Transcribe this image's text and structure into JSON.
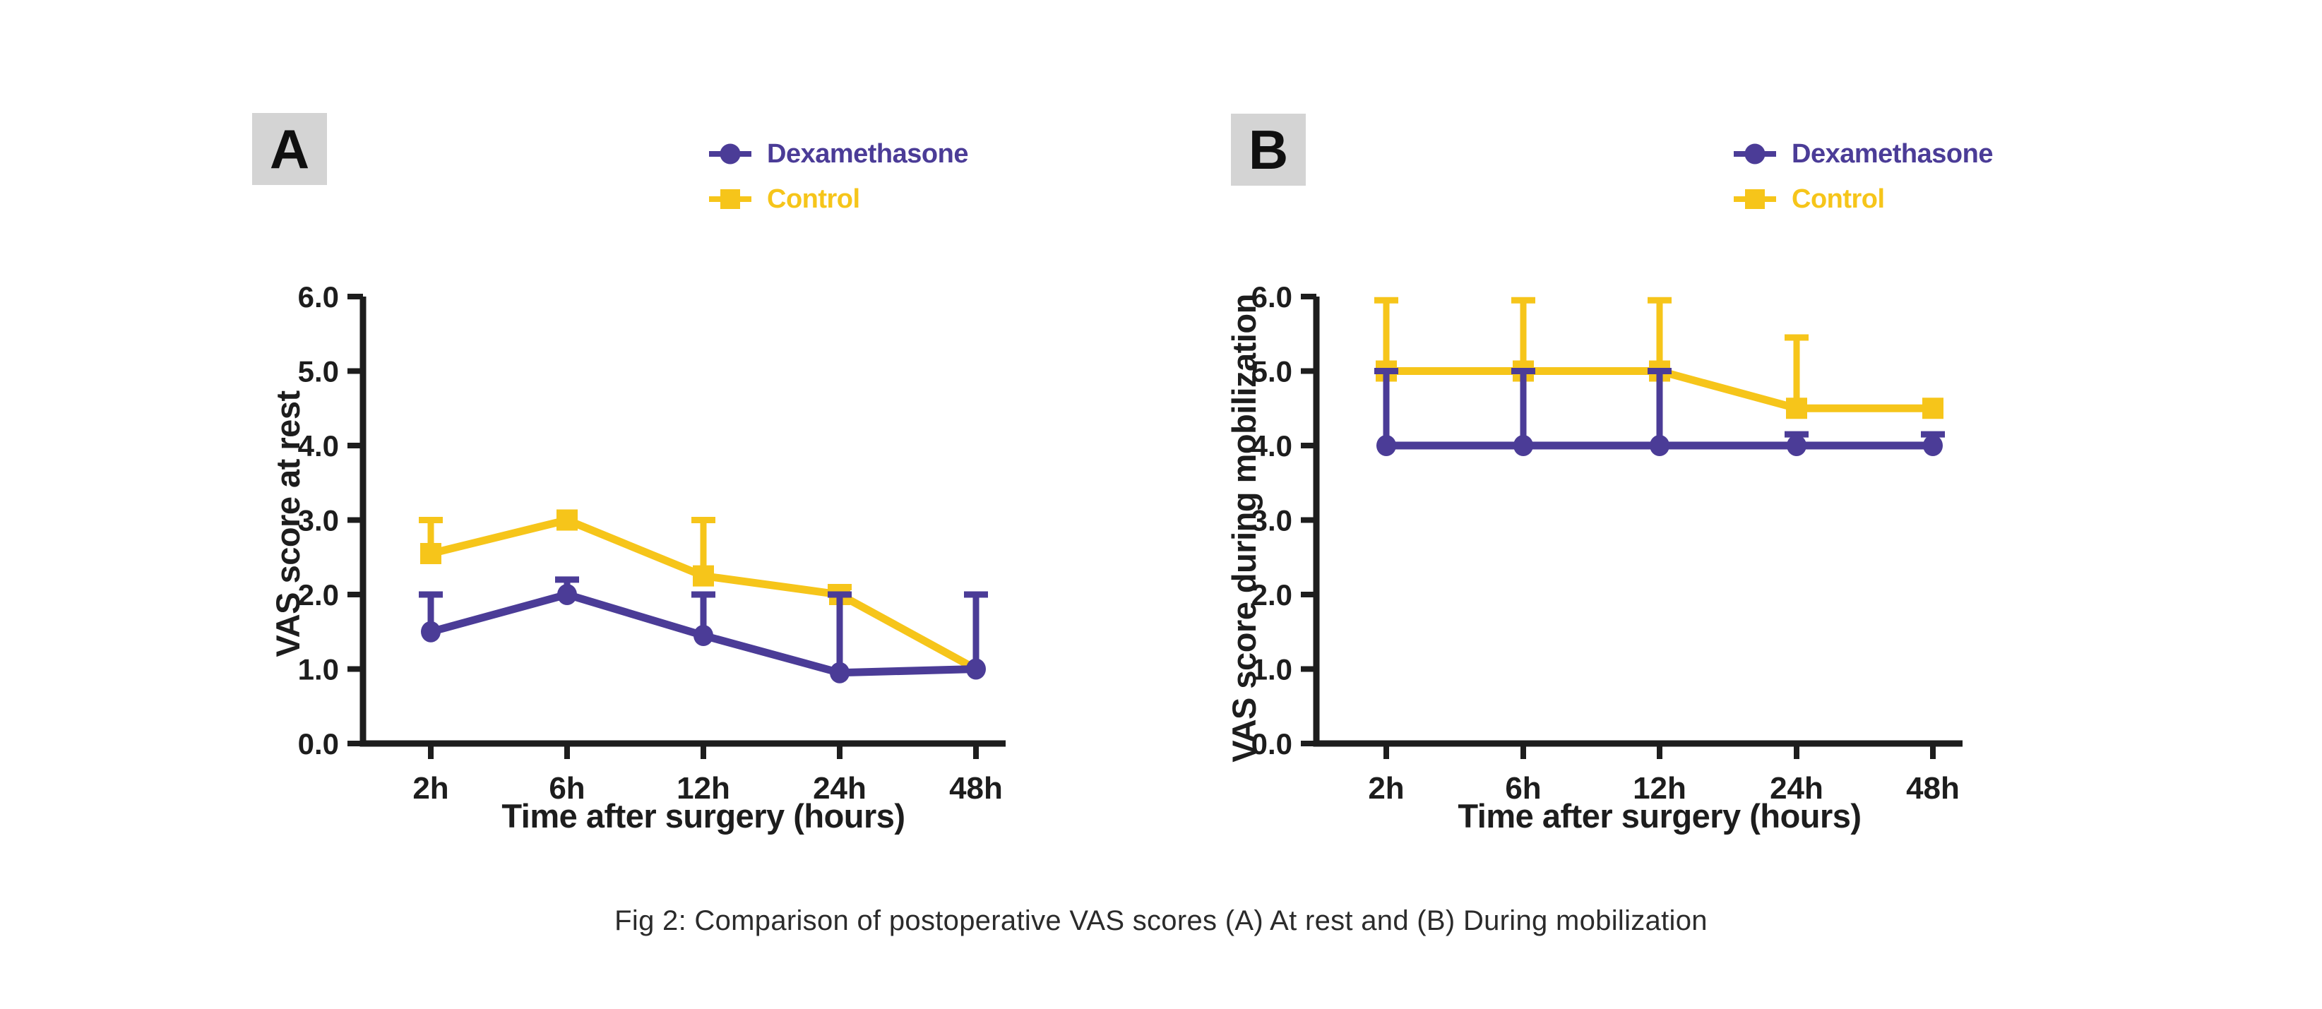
{
  "figure": {
    "caption": "Fig 2: Comparison of postoperative VAS scores (A) At rest and (B) During mobilization"
  },
  "colors": {
    "dexamethasone": "#4b3c97",
    "control": "#f6c51a",
    "axis": "#1d1d1d",
    "panel_label_bg": "#d4d4d4"
  },
  "panels": [
    {
      "label": "A"
    },
    {
      "label": "B"
    }
  ],
  "legend": {
    "items": [
      {
        "label": "Dexamethasone",
        "marker": "circle",
        "color": "#4b3c97"
      },
      {
        "label": "Control",
        "marker": "square",
        "color": "#f6c51a"
      }
    ]
  },
  "chart_data": [
    {
      "type": "line",
      "panel": "A",
      "title": "",
      "xlabel": "Time after surgery (hours)",
      "ylabel": "VAS score at rest",
      "categories": [
        "2h",
        "6h",
        "12h",
        "24h",
        "48h"
      ],
      "ylim": [
        0,
        6
      ],
      "yticks": [
        "0.0",
        "1.0",
        "2.0",
        "3.0",
        "4.0",
        "5.0",
        "6.0"
      ],
      "grid": false,
      "legend_position": "top-right",
      "series": [
        {
          "name": "Dexamethasone",
          "marker": "circle",
          "color": "#4b3c97",
          "values": [
            1.5,
            2.0,
            1.45,
            0.95,
            1.0
          ],
          "error_upper": [
            2.0,
            2.2,
            2.0,
            2.0,
            2.0
          ]
        },
        {
          "name": "Control",
          "marker": "square",
          "color": "#f6c51a",
          "values": [
            2.55,
            3.0,
            2.25,
            2.0,
            1.0
          ],
          "error_upper": [
            3.0,
            null,
            3.0,
            2.1,
            null
          ],
          "marker_skip": [
            4
          ]
        }
      ]
    },
    {
      "type": "line",
      "panel": "B",
      "title": "",
      "xlabel": "Time after surgery (hours)",
      "ylabel": "VAS score during mobilization",
      "categories": [
        "2h",
        "6h",
        "12h",
        "24h",
        "48h"
      ],
      "ylim": [
        0,
        6
      ],
      "yticks": [
        "0.0",
        "1.0",
        "2.0",
        "3.0",
        "4.0",
        "5.0",
        "6.0"
      ],
      "grid": false,
      "legend_position": "top-right",
      "series": [
        {
          "name": "Dexamethasone",
          "marker": "circle",
          "color": "#4b3c97",
          "values": [
            4.0,
            4.0,
            4.0,
            4.0,
            4.0
          ],
          "error_upper": [
            5.0,
            5.0,
            5.0,
            4.15,
            4.15
          ]
        },
        {
          "name": "Control",
          "marker": "square",
          "color": "#f6c51a",
          "values": [
            5.0,
            5.0,
            5.0,
            4.5,
            4.5
          ],
          "error_upper": [
            5.95,
            5.95,
            5.95,
            5.45,
            null
          ]
        }
      ]
    }
  ]
}
